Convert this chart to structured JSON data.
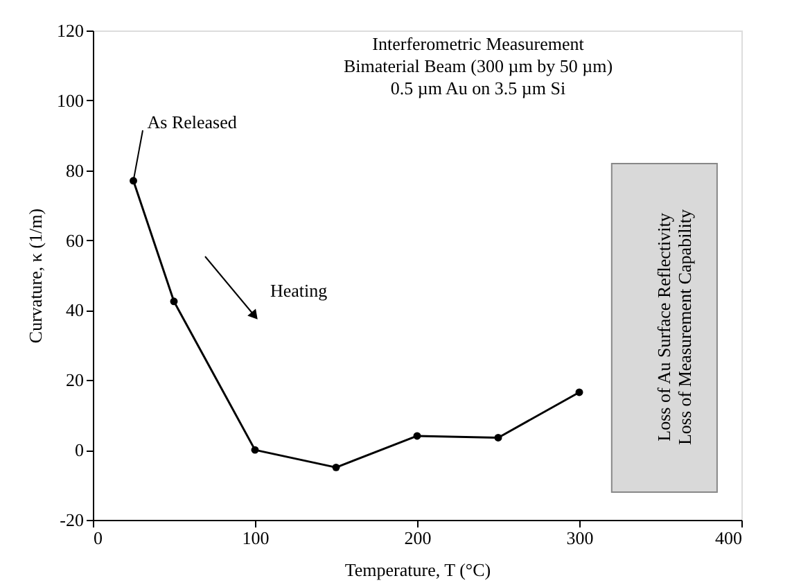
{
  "chart_data": {
    "type": "line",
    "xlabel": "Temperature, T (°C)",
    "ylabel": "Curvature, κ (1/m)",
    "x": [
      25,
      50,
      100,
      150,
      200,
      250,
      300
    ],
    "series": [
      {
        "color": "#000000",
        "values": [
          77,
          42.5,
          0,
          -5,
          4,
          3.5,
          16.5
        ]
      }
    ],
    "marker": "circle",
    "line_style": "solid",
    "xlim": [
      0,
      400
    ],
    "xticks": [
      0,
      100,
      200,
      300,
      400
    ],
    "ylim": [
      -20,
      120
    ],
    "yticks": [
      -20,
      0,
      20,
      40,
      60,
      80,
      100,
      120
    ],
    "grid": false,
    "bands": [
      {
        "axis": "x",
        "from": 320,
        "to": 385,
        "label": "Loss of Au Surface Reflectivity\nLoss of Measurement Capability",
        "color": "#d9d9d9"
      }
    ],
    "annotations": [
      {
        "text": "As Released",
        "x": 25,
        "y": 77
      },
      "Heating",
      "Interferometric Measurement",
      "Bimaterial Beam (300 µm by 50 µm)",
      "0.5  µm Au on 3.5  µm Si"
    ]
  }
}
